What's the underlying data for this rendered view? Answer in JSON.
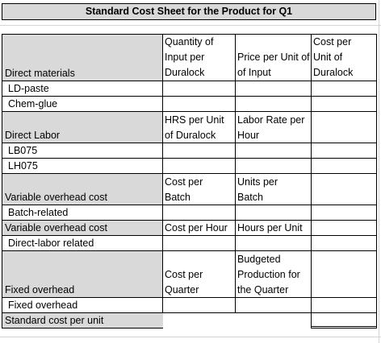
{
  "title": "Standard Cost Sheet for the Product for Q1",
  "headers": {
    "quantity_input": [
      "Quantity of",
      "Input per",
      "Duralock"
    ],
    "price_input": "Price per Unit of Input",
    "cost_per_unit": [
      "Cost per",
      "Unit of",
      "Duralock"
    ],
    "hrs_per_unit": [
      "HRS per Unit",
      "of Duralock"
    ],
    "labor_rate": [
      "Labor Rate per",
      "Hour"
    ],
    "cost_per_batch": [
      "Cost per",
      "Batch"
    ],
    "units_per_batch": [
      "Units per",
      "Batch"
    ],
    "cost_per_hour": "Cost per Hour",
    "hours_per_unit": "Hours per Unit",
    "cost_per_quarter": [
      "Cost per",
      "Quarter"
    ],
    "budgeted_production": [
      "Budgeted",
      "Production for",
      "the Quarter"
    ]
  },
  "rows": {
    "direct_materials": "Direct materials",
    "ld_paste": "LD-paste",
    "chem_glue": "Chem-glue",
    "direct_labor": "Direct Labor",
    "lb075": "LB075",
    "lh075": "LH075",
    "variable_overhead_cost": "Variable overhead cost",
    "batch_related": "Batch-related",
    "variable_overhead_cost_2": "Variable overhead cost",
    "direct_labor_related": "Direct-labor related",
    "fixed_overhead": "Fixed overhead",
    "fixed_overhead_2": "Fixed overhead",
    "standard_cost_per_unit": "Standard cost per unit"
  },
  "colors": {
    "header_fill": "#d9d9d9",
    "grid": "#000000"
  }
}
